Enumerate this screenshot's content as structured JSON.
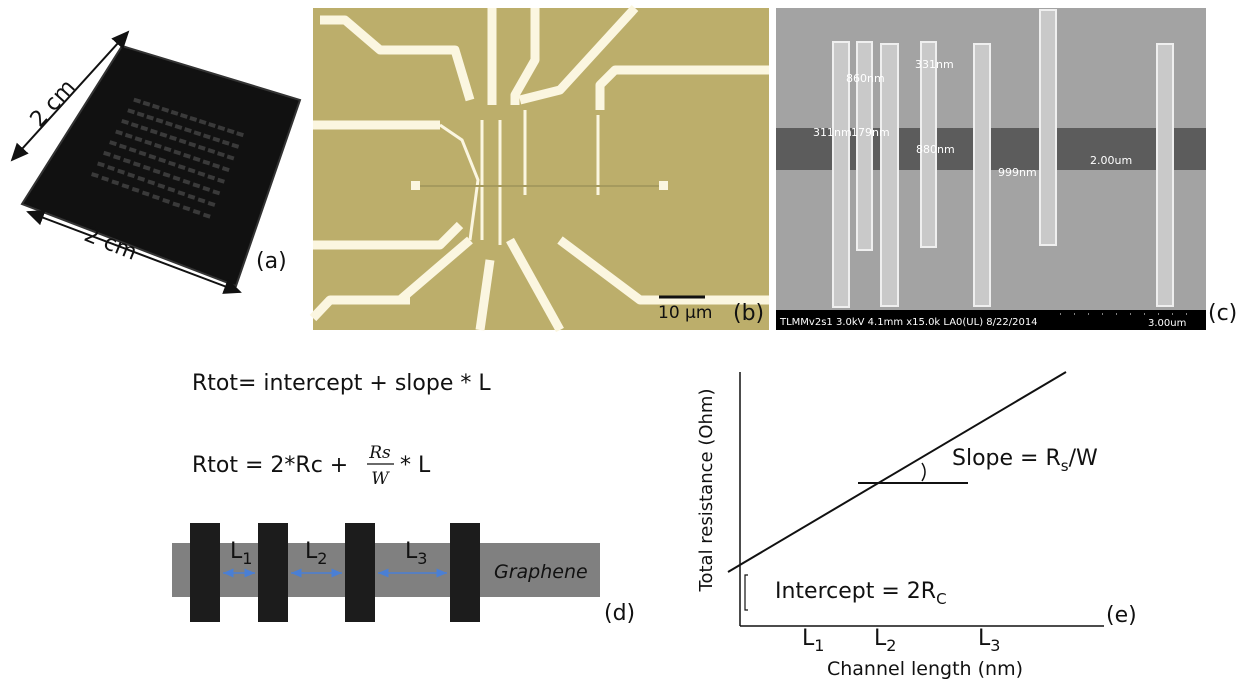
{
  "panel_a": {
    "width_label": "2 cm",
    "height_label": "2 cm",
    "label": "(a)"
  },
  "panel_b": {
    "scale_bar": "10 μm",
    "label": "(b)"
  },
  "panel_c": {
    "measurements": [
      "860nm",
      "331nm",
      "311nm",
      "179nm",
      "880nm",
      "999nm",
      "2.00um"
    ],
    "info_bar": "TLMMv2s1 3.0kV 4.1mm x15.0k LA0(UL) 8/22/2014",
    "scale_bar": "3.00um",
    "label": "(c)"
  },
  "panel_d": {
    "equation_1": "Rtot= intercept + slope * L",
    "equation_2": {
      "left": "Rtot = 2*Rc  +",
      "numerator": "Rs",
      "denominator": "W",
      "right": "* L"
    },
    "gaps": [
      {
        "main": "L",
        "sub": "1"
      },
      {
        "main": "L",
        "sub": "2"
      },
      {
        "main": "L",
        "sub": "3"
      }
    ],
    "material": "Graphene",
    "label": "(d)"
  },
  "panel_e": {
    "y_label": "Total resistance (Ohm)",
    "x_label": "Channel length (nm)",
    "slope": {
      "text": "Slope = R",
      "sub": "s",
      "rest": "/W"
    },
    "intercept": {
      "text": "Intercept = 2R",
      "sub": "C"
    },
    "x_marks": [
      {
        "main": "L",
        "sub": "1"
      },
      {
        "main": "L",
        "sub": "2"
      },
      {
        "main": "L",
        "sub": "3"
      }
    ],
    "label": "(e)"
  }
}
